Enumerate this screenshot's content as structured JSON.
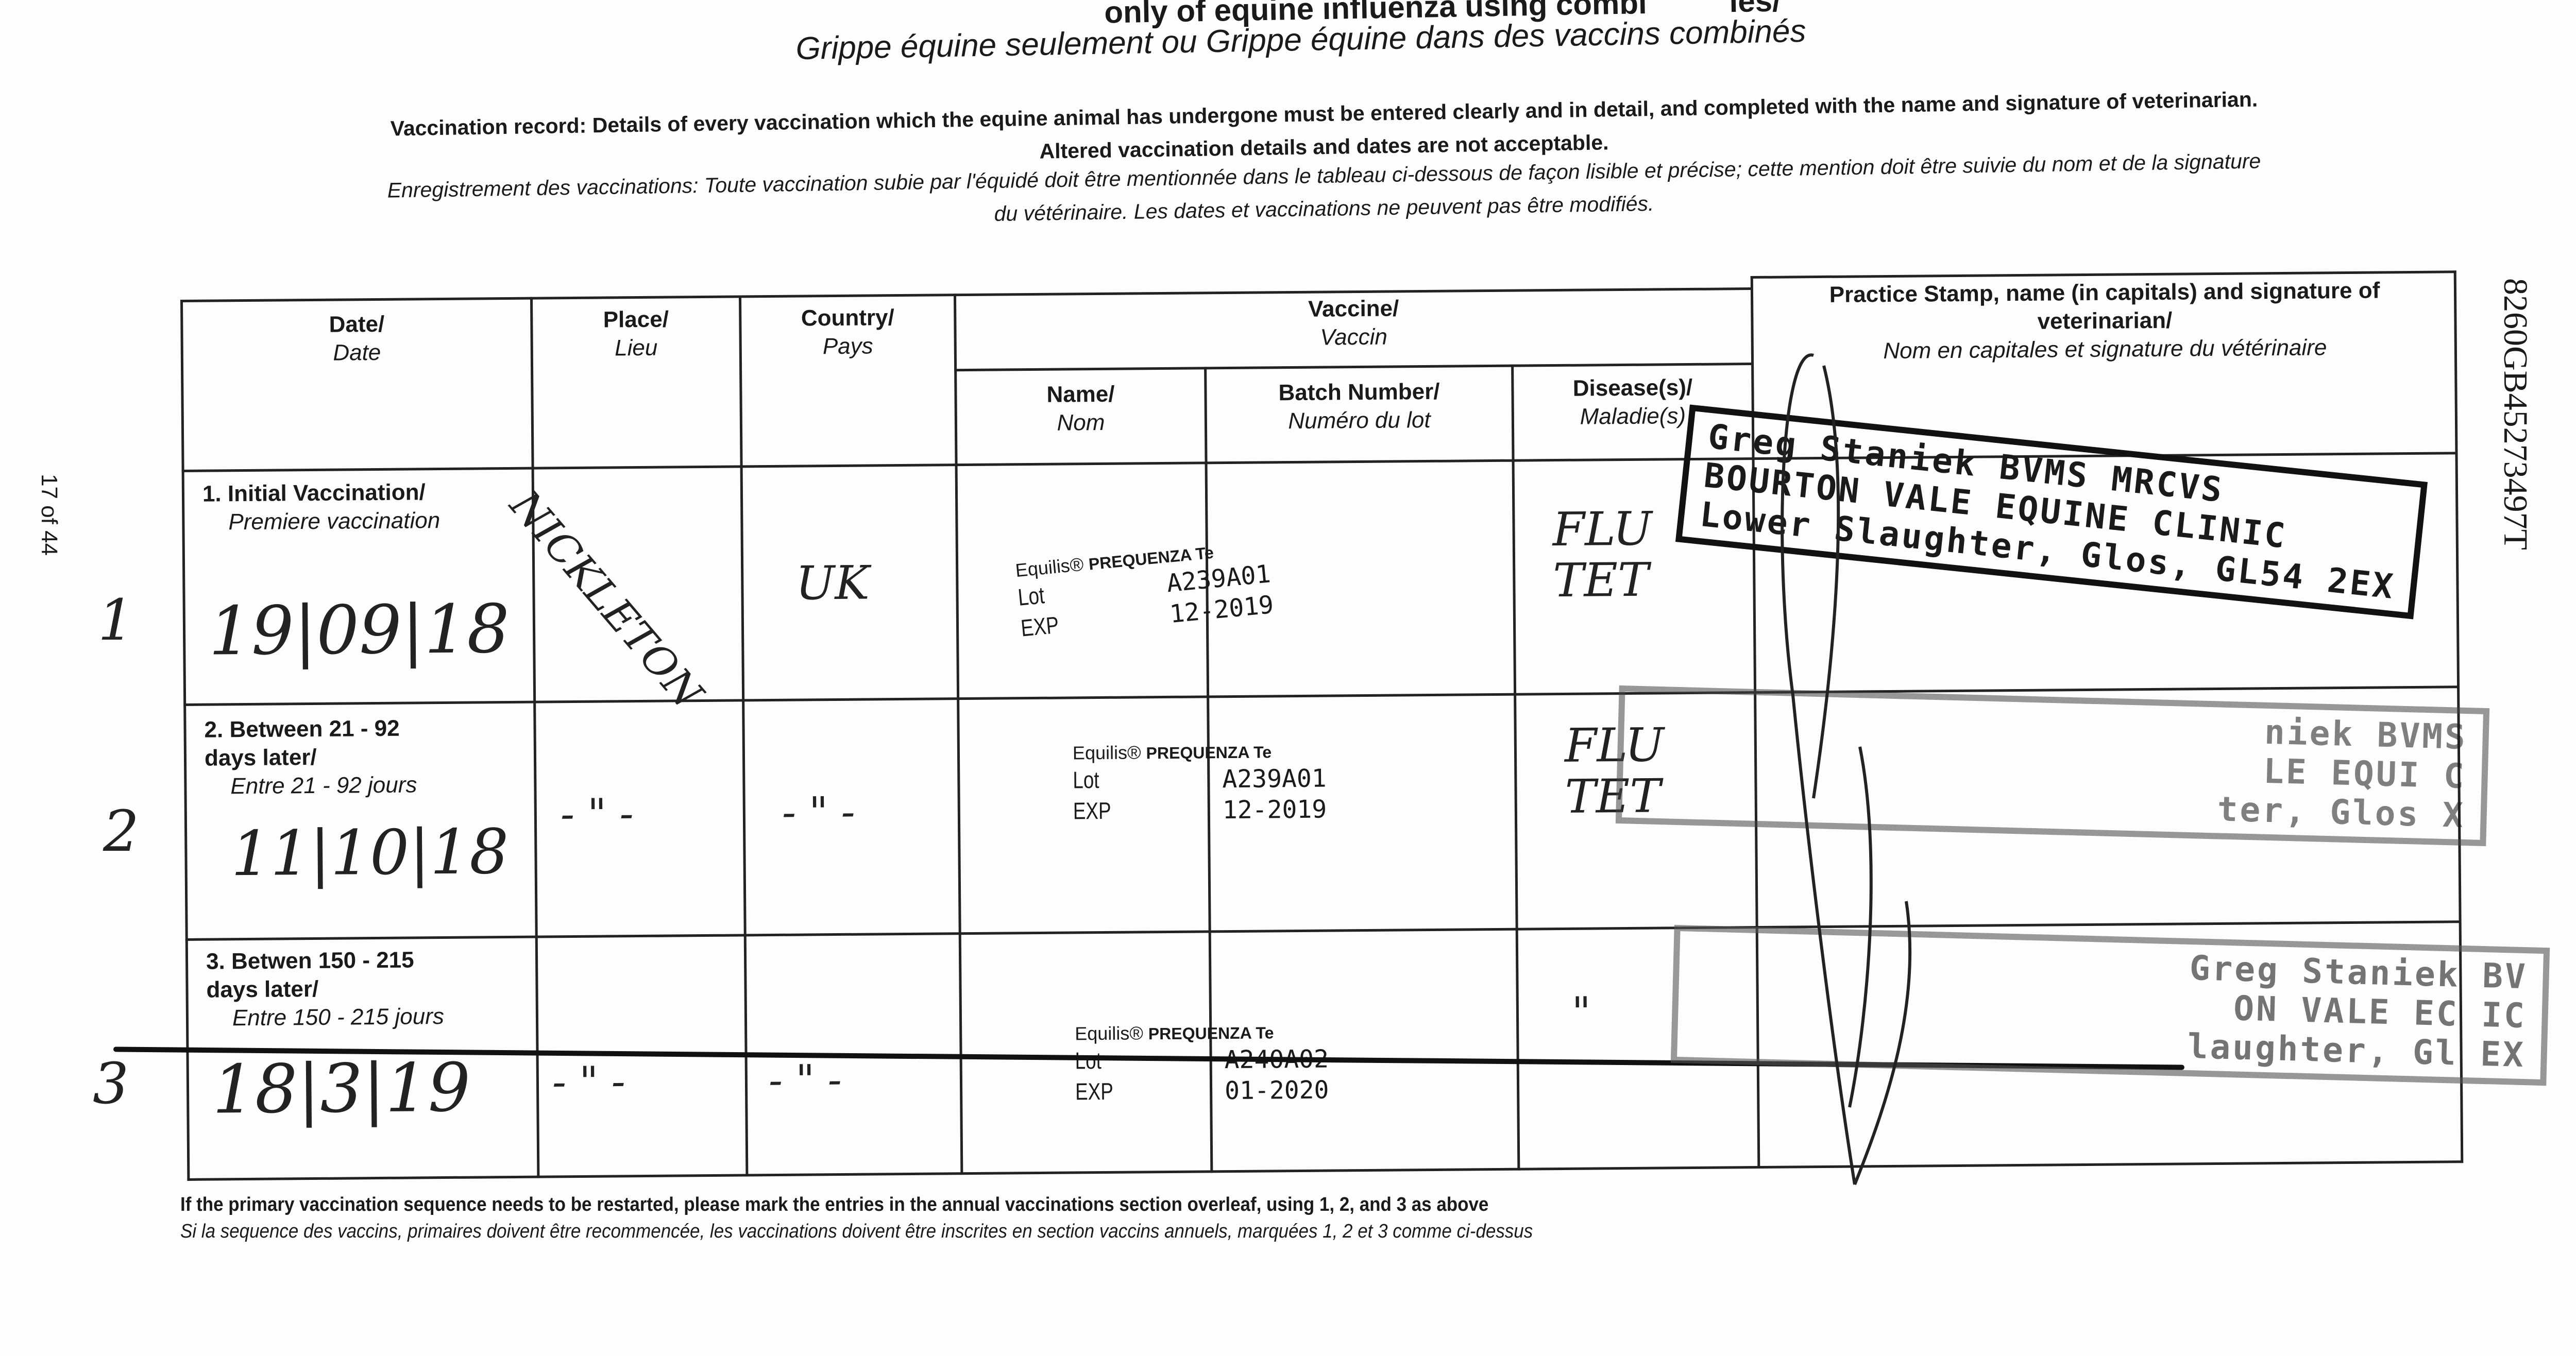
{
  "header": {
    "title_partial": "only of equine influenza using combi",
    "title_partial_end": "ies/",
    "subtitle_fr": "Grippe équine seulement ou Grippe équine dans des vaccins combinés",
    "instructions_en_1": "Vaccination record: Details of every vaccination which the equine animal has undergone must be entered clearly and in detail, and completed with the name and signature of veterinarian.",
    "instructions_en_2": "Altered vaccination details and dates are not acceptable.",
    "instructions_fr_1": "Enregistrement des vaccinations: Toute vaccination subie par l'équidé doit être mentionnée dans le tableau ci-dessous de façon lisible et précise; cette mention doit être suivie du nom et de la signature",
    "instructions_fr_2": "du vétérinaire. Les dates et vaccinations ne peuvent pas être modifiés."
  },
  "page_counter": "17 of 44",
  "document_number": "8260GB45273497T",
  "columns": {
    "date": "Date/",
    "date_fr": "Date",
    "place": "Place/",
    "place_fr": "Lieu",
    "country": "Country/",
    "country_fr": "Pays",
    "vaccine": "Vaccine/",
    "vaccine_fr": "Vaccin",
    "name": "Name/",
    "name_fr": "Nom",
    "batch": "Batch Number/",
    "batch_fr": "Numéro du lot",
    "disease": "Disease(s)/",
    "disease_fr": "Maladie(s)",
    "stamp": "Practice Stamp, name (in capitals) and signature of veterinarian/",
    "stamp_fr": "Nom en capitales et signature du vétérinaire"
  },
  "rows": [
    {
      "margin": "1",
      "label": "1. Initial Vaccination/",
      "label_fr": "Premiere vaccination",
      "date": "19|09|18",
      "place": "NICKLETON",
      "country": "UK",
      "disease": "FLU TET",
      "vaccine": {
        "brand": "Equilis®",
        "product": "PREQUENZA Te",
        "lot_label": "Lot",
        "exp_label": "EXP",
        "lot": "A239A01",
        "exp": "12-2019"
      }
    },
    {
      "margin": "2",
      "label": "2. Between 21 - 92 days later/",
      "label_fr": "Entre 21 - 92 jours",
      "date": "11|10|18",
      "place": "- \" -",
      "country": "- \" -",
      "disease": "FLU TET",
      "vaccine": {
        "brand": "Equilis®",
        "product": "PREQUENZA Te",
        "lot_label": "Lot",
        "exp_label": "EXP",
        "lot": "A239A01",
        "exp": "12-2019"
      }
    },
    {
      "margin": "3",
      "label": "3. Betwen 150 - 215 days later/",
      "label_fr": "Entre 150 - 215 jours",
      "date": "18|3|19",
      "place": "- \" -",
      "country": "- \" -",
      "disease": "\"",
      "vaccine": {
        "brand": "Equilis®",
        "product": "PREQUENZA Te",
        "lot_label": "Lot",
        "exp_label": "EXP",
        "lot": "A240A02",
        "exp": "01-2020"
      }
    }
  ],
  "stamps": [
    {
      "line1": "Greg Staniek BVMS MRCVS",
      "line2": "BOURTON VALE EQUINE CLINIC",
      "line3": "Lower Slaughter, Glos, GL54 2EX"
    },
    {
      "line1": "niek BVMS       ",
      "line2": "LE EQUI       C",
      "line3": "ter, Glos      X"
    },
    {
      "line1": "Greg Staniek BV     ",
      "line2": "ON VALE EC      IC",
      "line3": "laughter, Gl    EX"
    }
  ],
  "footer": {
    "en": "If the primary vaccination sequence needs to be restarted, please mark the entries in the annual vaccinations section overleaf, using 1, 2, and 3 as above",
    "fr": "Si la sequence des vaccins, primaires doivent être recommencée, les vaccinations doivent être inscrites en section vaccins annuels, marquées 1, 2 et 3 comme ci-dessus"
  }
}
